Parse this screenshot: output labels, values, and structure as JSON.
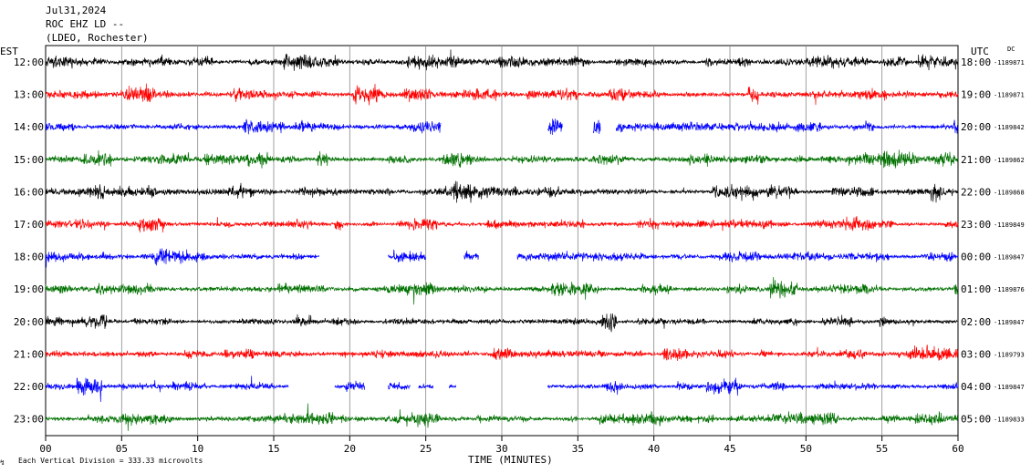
{
  "header": {
    "date": "Jul31,2024",
    "station": "ROC EHZ LD --",
    "network": "(LDEO, Rochester)",
    "left_zone": "EST",
    "right_zone": "UTC",
    "dc_label": "DC"
  },
  "footer": {
    "scale_text": "Each Vertical Division =  333.33 microvolts",
    "corner_mark": "↯"
  },
  "chart_data": {
    "type": "line",
    "xlabel": "TIME (MINUTES)",
    "xlim": [
      0,
      60
    ],
    "x_ticks": [
      "00",
      "05",
      "10",
      "15",
      "20",
      "25",
      "30",
      "35",
      "40",
      "45",
      "50",
      "55",
      "60"
    ],
    "grid": true,
    "trace_colors": [
      "#000000",
      "#ff0000",
      "#0000ff",
      "#007000"
    ],
    "rows": [
      {
        "est": "12:00",
        "utc": "18:00",
        "dc": "-1189871",
        "color": "#000000",
        "activity": 1.0,
        "gaps": []
      },
      {
        "est": "13:00",
        "utc": "19:00",
        "dc": "-1189871",
        "color": "#ff0000",
        "activity": 1.15,
        "gaps": []
      },
      {
        "est": "14:00",
        "utc": "20:00",
        "dc": "-1189842",
        "color": "#0000ff",
        "activity": 1.0,
        "gaps": [
          [
            26,
            33
          ],
          [
            34,
            36
          ],
          [
            36.5,
            37.5
          ]
        ]
      },
      {
        "est": "15:00",
        "utc": "21:00",
        "dc": "-1189862",
        "color": "#007000",
        "activity": 1.1,
        "gaps": []
      },
      {
        "est": "16:00",
        "utc": "22:00",
        "dc": "-1189868",
        "color": "#000000",
        "activity": 1.0,
        "gaps": []
      },
      {
        "est": "17:00",
        "utc": "23:00",
        "dc": "-1189849",
        "color": "#ff0000",
        "activity": 0.8,
        "gaps": []
      },
      {
        "est": "18:00",
        "utc": "00:00",
        "dc": "-1189847",
        "color": "#0000ff",
        "activity": 0.9,
        "gaps": [
          [
            18,
            22.5
          ],
          [
            25,
            27.5
          ],
          [
            28.5,
            31
          ]
        ]
      },
      {
        "est": "19:00",
        "utc": "01:00",
        "dc": "-1189876",
        "color": "#007000",
        "activity": 0.9,
        "gaps": []
      },
      {
        "est": "20:00",
        "utc": "02:00",
        "dc": "-1189847",
        "color": "#000000",
        "activity": 0.9,
        "gaps": []
      },
      {
        "est": "21:00",
        "utc": "03:00",
        "dc": "-1189793",
        "color": "#ff0000",
        "activity": 0.95,
        "gaps": []
      },
      {
        "est": "22:00",
        "utc": "04:00",
        "dc": "-1189847",
        "color": "#0000ff",
        "activity": 0.9,
        "gaps": [
          [
            16,
            19
          ],
          [
            21,
            22.5
          ],
          [
            24,
            24.5
          ],
          [
            25.5,
            26.5
          ],
          [
            27,
            33
          ]
        ]
      },
      {
        "est": "23:00",
        "utc": "05:00",
        "dc": "-1189833",
        "color": "#007000",
        "activity": 0.85,
        "gaps": []
      }
    ]
  }
}
